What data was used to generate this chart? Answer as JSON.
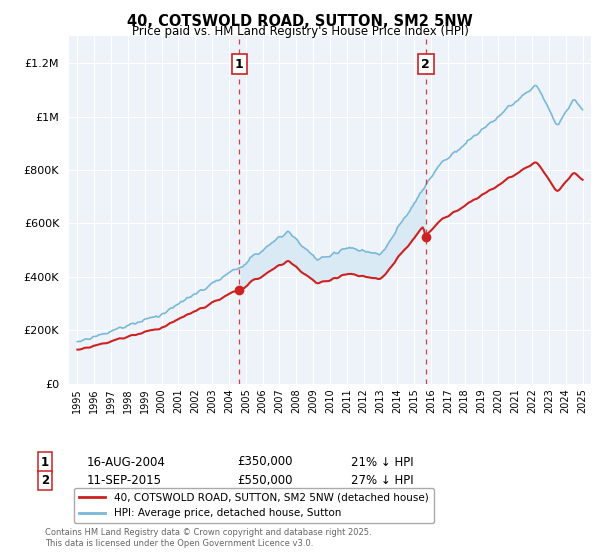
{
  "title": "40, COTSWOLD ROAD, SUTTON, SM2 5NW",
  "subtitle": "Price paid vs. HM Land Registry's House Price Index (HPI)",
  "ylim": [
    0,
    1300000
  ],
  "xlim_start": 1994.5,
  "xlim_end": 2025.5,
  "sale1_date": 2004.62,
  "sale1_price": 350000,
  "sale1_label": "1",
  "sale2_date": 2015.69,
  "sale2_price": 550000,
  "sale2_label": "2",
  "hpi_color": "#7ab8d9",
  "price_color": "#cc2222",
  "dashed_line_color": "#cc2222",
  "fill_color": "#daeaf5",
  "bg_color": "#eef3fa",
  "grid_color": "#ffffff",
  "legend_label_price": "40, COTSWOLD ROAD, SUTTON, SM2 5NW (detached house)",
  "legend_label_hpi": "HPI: Average price, detached house, Sutton",
  "footer": "Contains HM Land Registry data © Crown copyright and database right 2025.\nThis data is licensed under the Open Government Licence v3.0.",
  "year_ticks": [
    1995,
    1996,
    1997,
    1998,
    1999,
    2000,
    2001,
    2002,
    2003,
    2004,
    2005,
    2006,
    2007,
    2008,
    2009,
    2010,
    2011,
    2012,
    2013,
    2014,
    2015,
    2016,
    2017,
    2018,
    2019,
    2020,
    2021,
    2022,
    2023,
    2024,
    2025
  ],
  "sale1_date_str": "16-AUG-2004",
  "sale1_price_str": "£350,000",
  "sale1_hpi_str": "21% ↓ HPI",
  "sale2_date_str": "11-SEP-2015",
  "sale2_price_str": "£550,000",
  "sale2_hpi_str": "27% ↓ HPI"
}
